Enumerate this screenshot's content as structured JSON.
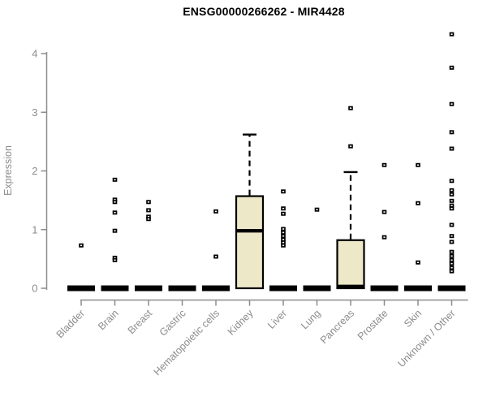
{
  "title": "ENSG00000266262 - MIR4428",
  "chart_data": {
    "type": "boxplot",
    "title": "ENSG00000266262 - MIR4428",
    "xlabel": "",
    "ylabel": "Expression",
    "ylim": [
      0,
      4.4
    ],
    "yticks": [
      "0",
      "1",
      "2",
      "3",
      "4"
    ],
    "grid": "off",
    "legend": "none",
    "categories": [
      "Bladder",
      "Brain",
      "Breast",
      "Gastric",
      "Hematopoietic cells",
      "Kidney",
      "Liver",
      "Lung",
      "Pancreas",
      "Prostate",
      "Skin",
      "Unknown / Other"
    ],
    "boxes": [
      {
        "category": "Bladder",
        "q1": 0,
        "median": 0,
        "q3": 0,
        "whisker_low": 0,
        "whisker_high": 0,
        "outliers": [
          0.73
        ]
      },
      {
        "category": "Brain",
        "q1": 0,
        "median": 0,
        "q3": 0,
        "whisker_low": 0,
        "whisker_high": 0,
        "outliers": [
          1.85,
          1.51,
          1.47,
          1.29,
          0.98,
          0.52,
          0.48
        ]
      },
      {
        "category": "Breast",
        "q1": 0,
        "median": 0,
        "q3": 0,
        "whisker_low": 0,
        "whisker_high": 0,
        "outliers": [
          1.47,
          1.33,
          1.22,
          1.18
        ]
      },
      {
        "category": "Gastric",
        "q1": 0,
        "median": 0,
        "q3": 0,
        "whisker_low": 0,
        "whisker_high": 0,
        "outliers": []
      },
      {
        "category": "Hematopoietic cells",
        "q1": 0,
        "median": 0,
        "q3": 0,
        "whisker_low": 0,
        "whisker_high": 0,
        "outliers": [
          1.31,
          0.54
        ]
      },
      {
        "category": "Kidney",
        "q1": 0,
        "median": 0.98,
        "q3": 1.57,
        "whisker_low": 0,
        "whisker_high": 2.62,
        "outliers": []
      },
      {
        "category": "Liver",
        "q1": 0,
        "median": 0,
        "q3": 0,
        "whisker_low": 0,
        "whisker_high": 0,
        "outliers": [
          1.65,
          1.36,
          1.27,
          1.01,
          0.95,
          0.89,
          0.83,
          0.78,
          0.73
        ]
      },
      {
        "category": "Lung",
        "q1": 0,
        "median": 0,
        "q3": 0,
        "whisker_low": 0,
        "whisker_high": 0,
        "outliers": [
          1.34
        ]
      },
      {
        "category": "Pancreas",
        "q1": 0,
        "median": 0,
        "q3": 0.82,
        "whisker_low": 0,
        "whisker_high": 1.98,
        "outliers": [
          3.07,
          2.42
        ]
      },
      {
        "category": "Prostate",
        "q1": 0,
        "median": 0,
        "q3": 0,
        "whisker_low": 0,
        "whisker_high": 0,
        "outliers": [
          2.1,
          1.3,
          0.87
        ]
      },
      {
        "category": "Skin",
        "q1": 0,
        "median": 0,
        "q3": 0,
        "whisker_low": 0,
        "whisker_high": 0,
        "outliers": [
          2.1,
          1.45,
          0.44
        ]
      },
      {
        "category": "Unknown / Other",
        "q1": 0,
        "median": 0,
        "q3": 0,
        "whisker_low": 0,
        "whisker_high": 0,
        "outliers": [
          4.33,
          3.76,
          3.14,
          2.66,
          2.38,
          1.83,
          1.67,
          1.6,
          1.49,
          1.41,
          1.36,
          1.08,
          0.89,
          0.79,
          0.62,
          0.55,
          0.48,
          0.42,
          0.35,
          0.29
        ]
      }
    ],
    "colors": {
      "box_fill": "#EDE8C8",
      "box_border": "#000000",
      "median": "#000000",
      "outlier": "#000000",
      "axis": "#8C8C8C",
      "tick_label": "#8C8C8C",
      "title": "#000000",
      "background": "#FFFFFF"
    }
  }
}
